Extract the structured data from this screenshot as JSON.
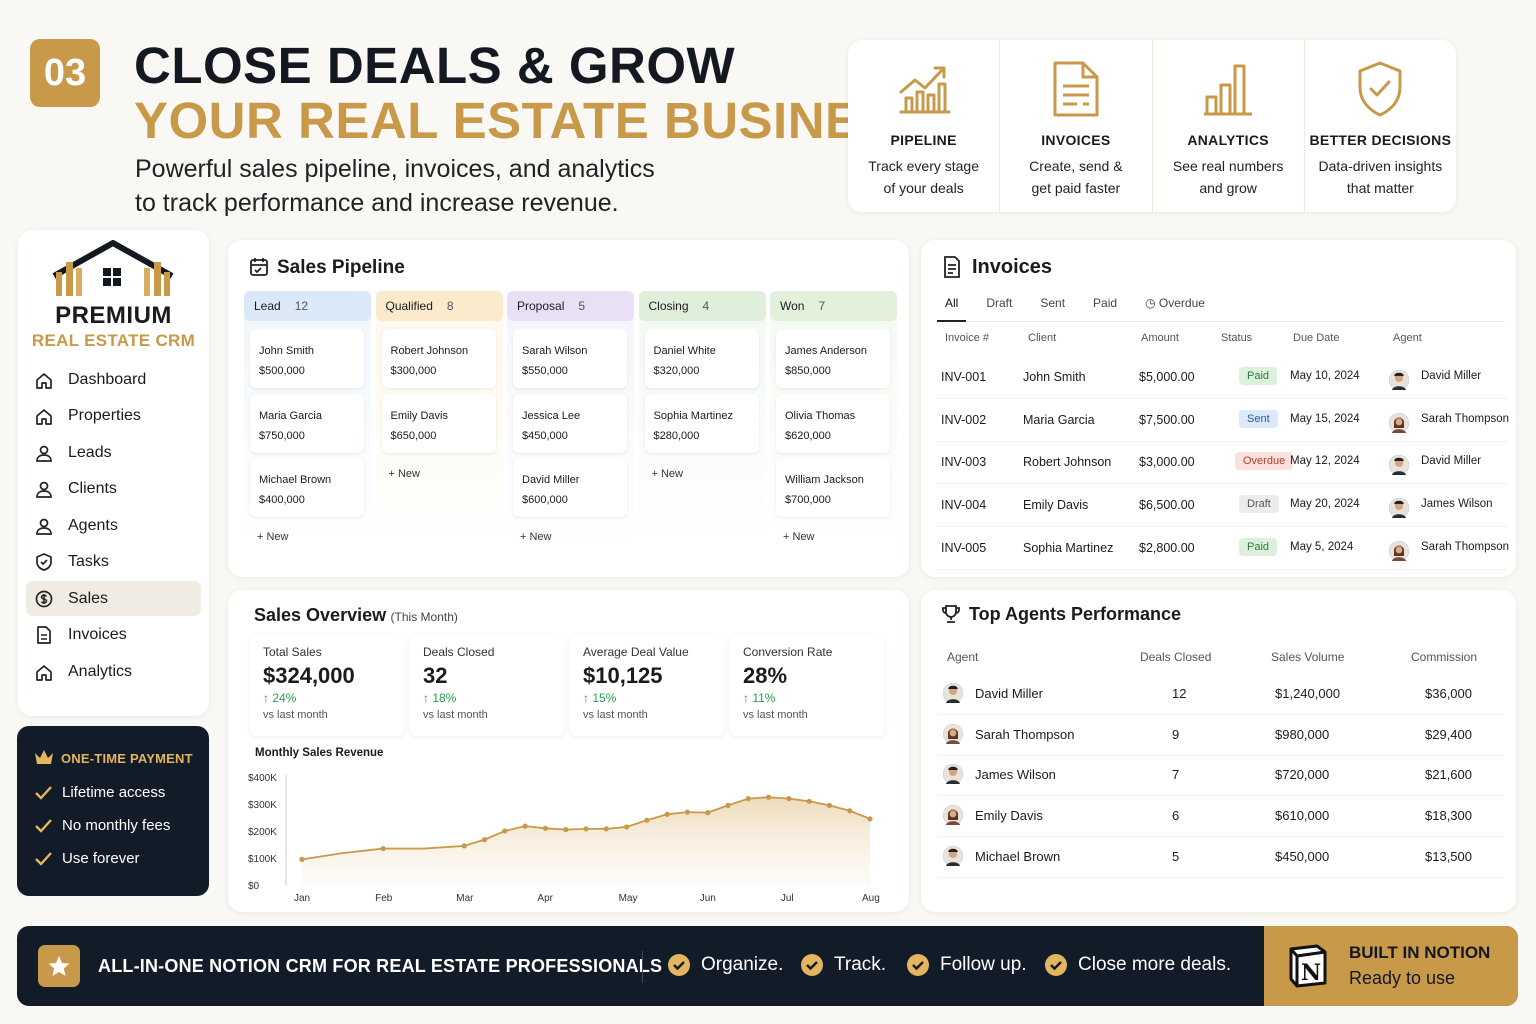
{
  "header": {
    "step": "03",
    "title_line1": "CLOSE DEALS & GROW",
    "title_line2": "YOUR REAL ESTATE BUSINESS",
    "subtitle_line1": "Powerful sales pipeline, invoices, and analytics",
    "subtitle_line2": "to track performance and increase revenue."
  },
  "features": [
    {
      "icon": "chart-growth-icon",
      "title": "PIPELINE",
      "desc1": "Track every stage",
      "desc2": "of your deals"
    },
    {
      "icon": "document-icon",
      "title": "INVOICES",
      "desc1": "Create, send &",
      "desc2": "get paid faster"
    },
    {
      "icon": "bar-chart-icon",
      "title": "ANALYTICS",
      "desc1": "See real numbers",
      "desc2": "and grow"
    },
    {
      "icon": "shield-check-icon",
      "title": "BETTER DECISIONS",
      "desc1": "Data-driven insights",
      "desc2": "that matter"
    }
  ],
  "sidebar": {
    "brand1": "PREMIUM",
    "brand2": "REAL ESTATE CRM",
    "items": [
      {
        "label": "Dashboard",
        "icon": "home-icon"
      },
      {
        "label": "Properties",
        "icon": "home-icon"
      },
      {
        "label": "Leads",
        "icon": "user-icon"
      },
      {
        "label": "Clients",
        "icon": "user-icon"
      },
      {
        "label": "Agents",
        "icon": "user-icon"
      },
      {
        "label": "Tasks",
        "icon": "shield-check-icon"
      },
      {
        "label": "Sales",
        "icon": "dollar-icon",
        "active": true
      },
      {
        "label": "Invoices",
        "icon": "document-icon"
      },
      {
        "label": "Analytics",
        "icon": "home-icon"
      }
    ]
  },
  "payment": {
    "title": "ONE-TIME PAYMENT",
    "items": [
      "Lifetime access",
      "No monthly fees",
      "Use forever"
    ]
  },
  "pipeline": {
    "title": "Sales Pipeline",
    "new_label": "New",
    "columns": [
      {
        "name": "Lead",
        "count": "12",
        "color": "#dbe8f7",
        "deals": [
          [
            "John Smith",
            "$500,000"
          ],
          [
            "Maria Garcia",
            "$750,000"
          ],
          [
            "Michael Brown",
            "$400,000"
          ]
        ]
      },
      {
        "name": "Qualified",
        "count": "8",
        "color": "#fbeacb",
        "deals": [
          [
            "Robert Johnson",
            "$300,000"
          ],
          [
            "Emily Davis",
            "$650,000"
          ]
        ]
      },
      {
        "name": "Proposal",
        "count": "5",
        "color": "#e9e0f5",
        "deals": [
          [
            "Sarah Wilson",
            "$550,000"
          ],
          [
            "Jessica Lee",
            "$450,000"
          ],
          [
            "David Miller",
            "$600,000"
          ]
        ]
      },
      {
        "name": "Closing",
        "count": "4",
        "color": "#e0efdc",
        "deals": [
          [
            "Daniel White",
            "$320,000"
          ],
          [
            "Sophia Martinez",
            "$280,000"
          ]
        ]
      },
      {
        "name": "Won",
        "count": "7",
        "color": "#e3f0dc",
        "deals": [
          [
            "James Anderson",
            "$850,000"
          ],
          [
            "Olivia Thomas",
            "$620,000"
          ],
          [
            "William Jackson",
            "$700,000"
          ]
        ]
      }
    ]
  },
  "invoices": {
    "title": "Invoices",
    "tabs": [
      "All",
      "Draft",
      "Sent",
      "Paid",
      "Overdue"
    ],
    "headers": [
      "Invoice #",
      "Client",
      "Amount",
      "Status",
      "Due Date",
      "Agent"
    ],
    "rows": [
      [
        "INV-001",
        "John Smith",
        "$5,000.00",
        "Paid",
        "May 10, 2024",
        "David Miller"
      ],
      [
        "INV-002",
        "Maria Garcia",
        "$7,500.00",
        "Sent",
        "May 15, 2024",
        "Sarah Thompson"
      ],
      [
        "INV-003",
        "Robert Johnson",
        "$3,000.00",
        "Overdue",
        "May 12, 2024",
        "David Miller"
      ],
      [
        "INV-004",
        "Emily Davis",
        "$6,500.00",
        "Draft",
        "May 20, 2024",
        "James Wilson"
      ],
      [
        "INV-005",
        "Sophia Martinez",
        "$2,800.00",
        "Paid",
        "May 5, 2024",
        "Sarah Thompson"
      ]
    ],
    "status_colors": {
      "Paid": [
        "#dcf1dc",
        "#2b7a3b"
      ],
      "Sent": [
        "#dbe9f8",
        "#2b5d9a"
      ],
      "Overdue": [
        "#fbe0dc",
        "#b2402f"
      ],
      "Draft": [
        "#ececec",
        "#555555"
      ]
    }
  },
  "overview": {
    "title": "Sales Overview",
    "period": "(This Month)",
    "kpis": [
      {
        "label": "Total Sales",
        "value": "$324,000",
        "change": "↑ 24%",
        "note": "vs last month"
      },
      {
        "label": "Deals Closed",
        "value": "32",
        "change": "↑ 18%",
        "note": "vs last month"
      },
      {
        "label": "Average Deal Value",
        "value": "$10,125",
        "change": "↑ 15%",
        "note": "vs last month"
      },
      {
        "label": "Conversion Rate",
        "value": "28%",
        "change": "↑ 11%",
        "note": "vs last month"
      }
    ]
  },
  "chart_data": {
    "type": "area",
    "title": "Monthly Sales Revenue",
    "x": [
      0,
      0.5,
      1,
      1.5,
      2,
      2.25,
      2.5,
      2.75,
      3,
      3.25,
      3.5,
      3.75,
      4,
      4.25,
      4.5,
      4.75,
      5,
      5.25,
      5.5,
      5.75,
      6,
      6.25,
      6.5,
      6.75,
      7
    ],
    "y": [
      95,
      118,
      135,
      135,
      145,
      168,
      200,
      218,
      210,
      205,
      208,
      208,
      215,
      240,
      262,
      270,
      268,
      295,
      320,
      325,
      320,
      310,
      295,
      275,
      245
    ],
    "tick_labels": [
      "Jan",
      "Feb",
      "Mar",
      "Apr",
      "May",
      "Jun",
      "Jul",
      "Aug"
    ],
    "ytick_labels": [
      "$0",
      "$100K",
      "$200K",
      "$300K",
      "$400K"
    ],
    "ylim": [
      0,
      400
    ],
    "color": "#c9994a"
  },
  "agents": {
    "title": "Top Agents Performance",
    "headers": [
      "Agent",
      "Deals Closed",
      "Sales Volume",
      "Commission"
    ],
    "rows": [
      [
        "David Miller",
        "12",
        "$1,240,000",
        "$36,000",
        "m"
      ],
      [
        "Sarah Thompson",
        "9",
        "$980,000",
        "$29,400",
        "f"
      ],
      [
        "James Wilson",
        "7",
        "$720,000",
        "$21,600",
        "m"
      ],
      [
        "Emily Davis",
        "6",
        "$610,000",
        "$18,300",
        "f"
      ],
      [
        "Michael Brown",
        "5",
        "$450,000",
        "$13,500",
        "m"
      ]
    ]
  },
  "footer": {
    "text": "ALL-IN-ONE NOTION CRM FOR REAL ESTATE PROFESSIONALS",
    "steps": [
      "Organize.",
      "Track.",
      "Follow up.",
      "Close more deals."
    ],
    "notion_title": "BUILT IN NOTION",
    "notion_sub": "Ready to use"
  }
}
